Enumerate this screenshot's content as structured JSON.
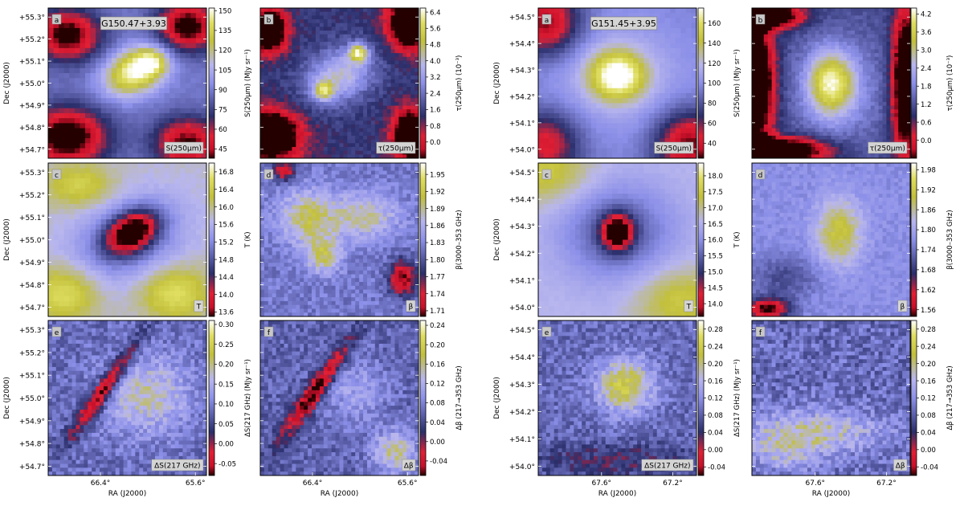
{
  "chart_data": [
    {
      "type": "heatmap",
      "source": "G150.47+3.93",
      "xlabel": "RA (J2000)",
      "ylabel": "Dec (J2000)",
      "x_ticks": [
        "66.4°",
        "65.6°"
      ],
      "y_ticks": [
        "+55.3°",
        "+55.2°",
        "+55.1°",
        "+55.0°",
        "+54.9°",
        "+54.8°",
        "+54.7°"
      ],
      "panels": [
        {
          "letter": "a",
          "corner_label": "S(250μm)",
          "cbar_label": "S(250μm) (MJy sr⁻¹)",
          "cbar_ticks": [
            "150",
            "135",
            "120",
            "105",
            "90",
            "75",
            "60",
            "45"
          ],
          "range": [
            38,
            152
          ],
          "bg": 0.45,
          "blobs": [
            {
              "cx": 0.55,
              "cy": 0.42,
              "sx": 0.14,
              "sy": 0.1,
              "a": 0.55,
              "rot": -0.5
            },
            {
              "cx": 0.66,
              "cy": 0.36,
              "sx": 0.07,
              "sy": 0.06,
              "a": 0.25,
              "rot": 0
            },
            {
              "cx": 0.12,
              "cy": 0.18,
              "sx": 0.15,
              "sy": 0.12,
              "a": -0.5,
              "rot": 0
            },
            {
              "cx": 0.88,
              "cy": 0.12,
              "sx": 0.14,
              "sy": 0.12,
              "a": -0.5,
              "rot": 0
            },
            {
              "cx": 0.12,
              "cy": 0.86,
              "sx": 0.18,
              "sy": 0.14,
              "a": -0.55,
              "rot": 0
            },
            {
              "cx": 0.88,
              "cy": 0.9,
              "sx": 0.15,
              "sy": 0.12,
              "a": -0.45,
              "rot": 0
            }
          ],
          "noise": 0.03,
          "smooth": true
        },
        {
          "letter": "b",
          "corner_label": "τ(250μm)",
          "cbar_label": "τ(250μm) (10⁻³)",
          "cbar_ticks": [
            "6.4",
            "5.6",
            "4.8",
            "4.0",
            "3.2",
            "2.4",
            "1.6",
            "0.8",
            "0.0"
          ],
          "range": [
            -0.8,
            6.6
          ],
          "bg": 0.3,
          "blobs": [
            {
              "cx": 0.5,
              "cy": 0.45,
              "sx": 0.16,
              "sy": 0.12,
              "a": 0.35,
              "rot": -0.5
            },
            {
              "cx": 0.62,
              "cy": 0.3,
              "sx": 0.04,
              "sy": 0.04,
              "a": 0.55,
              "rot": 0
            },
            {
              "cx": 0.4,
              "cy": 0.55,
              "sx": 0.04,
              "sy": 0.04,
              "a": 0.45,
              "rot": 0
            },
            {
              "cx": 0.05,
              "cy": 0.15,
              "sx": 0.08,
              "sy": 0.1,
              "a": -0.6,
              "rot": 0
            },
            {
              "cx": 0.95,
              "cy": 0.1,
              "sx": 0.1,
              "sy": 0.12,
              "a": -0.6,
              "rot": 0
            },
            {
              "cx": 0.05,
              "cy": 0.85,
              "sx": 0.14,
              "sy": 0.12,
              "a": -0.6,
              "rot": 0
            },
            {
              "cx": 0.95,
              "cy": 0.85,
              "sx": 0.08,
              "sy": 0.12,
              "a": -0.6,
              "rot": 0
            }
          ],
          "noise": 0.08,
          "smooth": false
        },
        {
          "letter": "c",
          "corner_label": "T",
          "cbar_label": "T (K)",
          "cbar_ticks": [
            "16.8",
            "16.4",
            "16.0",
            "15.6",
            "15.2",
            "14.8",
            "14.4",
            "14.0",
            "13.6"
          ],
          "range": [
            13.5,
            17.0
          ],
          "bg": 0.65,
          "blobs": [
            {
              "cx": 0.53,
              "cy": 0.45,
              "sx": 0.12,
              "sy": 0.08,
              "a": -0.6,
              "rot": -0.55
            },
            {
              "cx": 0.5,
              "cy": 0.5,
              "sx": 0.25,
              "sy": 0.18,
              "a": -0.25,
              "rot": -0.4
            },
            {
              "cx": 0.2,
              "cy": 0.15,
              "sx": 0.15,
              "sy": 0.1,
              "a": 0.2,
              "rot": 0
            },
            {
              "cx": 0.1,
              "cy": 0.85,
              "sx": 0.15,
              "sy": 0.12,
              "a": 0.25,
              "rot": 0
            },
            {
              "cx": 0.8,
              "cy": 0.85,
              "sx": 0.15,
              "sy": 0.12,
              "a": 0.25,
              "rot": 0
            }
          ],
          "noise": 0.03,
          "smooth": true
        },
        {
          "letter": "d",
          "corner_label": "β",
          "cbar_label": "β(3000–353 GHz)",
          "cbar_ticks": [
            "1.95",
            "1.92",
            "1.89",
            "1.86",
            "1.83",
            "1.80",
            "1.77",
            "1.74",
            "1.71"
          ],
          "range": [
            1.7,
            1.97
          ],
          "bg": 0.45,
          "blobs": [
            {
              "cx": 0.3,
              "cy": 0.35,
              "sx": 0.12,
              "sy": 0.12,
              "a": 0.3,
              "rot": 0
            },
            {
              "cx": 0.65,
              "cy": 0.35,
              "sx": 0.15,
              "sy": 0.1,
              "a": 0.25,
              "rot": 0
            },
            {
              "cx": 0.4,
              "cy": 0.6,
              "sx": 0.08,
              "sy": 0.08,
              "a": 0.3,
              "rot": 0
            },
            {
              "cx": 0.9,
              "cy": 0.75,
              "sx": 0.06,
              "sy": 0.08,
              "a": -0.45,
              "rot": 0
            },
            {
              "cx": 0.15,
              "cy": 0.05,
              "sx": 0.05,
              "sy": 0.05,
              "a": -0.35,
              "rot": 0
            }
          ],
          "noise": 0.12,
          "smooth": false
        },
        {
          "letter": "e",
          "corner_label": "ΔS(217 GHz)",
          "cbar_label": "ΔS(217 GHz) (MJy sr⁻¹)",
          "cbar_ticks": [
            "0.30",
            "0.25",
            "0.20",
            "0.15",
            "0.10",
            "0.05",
            "0.00",
            "-0.05"
          ],
          "range": [
            -0.08,
            0.31
          ],
          "bg": 0.42,
          "blobs": [
            {
              "cx": 0.62,
              "cy": 0.48,
              "sx": 0.2,
              "sy": 0.18,
              "a": 0.25,
              "rot": 0
            },
            {
              "cx": 0.35,
              "cy": 0.45,
              "sx": 0.04,
              "sy": 0.25,
              "a": -0.45,
              "rot": 0.6
            }
          ],
          "noise": 0.15,
          "smooth": false
        },
        {
          "letter": "f",
          "corner_label": "Δβ",
          "cbar_label": "Δβ (217→353 GHz)",
          "cbar_ticks": [
            "0.24",
            "0.20",
            "0.16",
            "0.12",
            "0.08",
            "0.04",
            "0.00",
            "-0.04"
          ],
          "range": [
            -0.07,
            0.25
          ],
          "bg": 0.4,
          "blobs": [
            {
              "cx": 0.6,
              "cy": 0.45,
              "sx": 0.15,
              "sy": 0.15,
              "a": 0.15,
              "rot": 0
            },
            {
              "cx": 0.85,
              "cy": 0.85,
              "sx": 0.1,
              "sy": 0.1,
              "a": 0.3,
              "rot": 0
            },
            {
              "cx": 0.35,
              "cy": 0.45,
              "sx": 0.04,
              "sy": 0.25,
              "a": -0.45,
              "rot": 0.6
            }
          ],
          "noise": 0.15,
          "smooth": false
        }
      ]
    },
    {
      "type": "heatmap",
      "source": "G151.45+3.95",
      "xlabel": "RA (J2000)",
      "ylabel": "Dec (J2000)",
      "x_ticks": [
        "67.6°",
        "67.2°"
      ],
      "y_ticks": [
        "+54.5°",
        "+54.4°",
        "+54.3°",
        "+54.2°",
        "+54.1°",
        "+54.0°"
      ],
      "panels": [
        {
          "letter": "a",
          "corner_label": "S(250μm)",
          "cbar_label": "S(250μm) (MJy sr⁻¹)",
          "cbar_ticks": [
            "160",
            "140",
            "120",
            "100",
            "80",
            "60",
            "40"
          ],
          "range": [
            25,
            175
          ],
          "bg": 0.45,
          "blobs": [
            {
              "cx": 0.5,
              "cy": 0.45,
              "sx": 0.12,
              "sy": 0.11,
              "a": 0.5,
              "rot": 0
            },
            {
              "cx": 0.5,
              "cy": 0.45,
              "sx": 0.35,
              "sy": 0.3,
              "a": 0.15,
              "rot": 0
            },
            {
              "cx": 0.05,
              "cy": 0.1,
              "sx": 0.15,
              "sy": 0.15,
              "a": -0.45,
              "rot": 0
            },
            {
              "cx": 0.95,
              "cy": 0.9,
              "sx": 0.15,
              "sy": 0.15,
              "a": -0.45,
              "rot": 0
            },
            {
              "cx": 0.05,
              "cy": 0.9,
              "sx": 0.15,
              "sy": 0.15,
              "a": -0.35,
              "rot": 0
            }
          ],
          "noise": 0.02,
          "smooth": true
        },
        {
          "letter": "b",
          "corner_label": "τ(250μm)",
          "cbar_label": "τ(250μm) (10⁻³)",
          "cbar_ticks": [
            "4.2",
            "3.6",
            "3.0",
            "2.4",
            "1.8",
            "1.2",
            "0.6",
            "0.0"
          ],
          "range": [
            -0.6,
            4.4
          ],
          "bg": 0.35,
          "blobs": [
            {
              "cx": 0.5,
              "cy": 0.5,
              "sx": 0.1,
              "sy": 0.14,
              "a": 0.5,
              "rot": 0
            },
            {
              "cx": 0.55,
              "cy": 0.55,
              "sx": 0.2,
              "sy": 0.25,
              "a": 0.15,
              "rot": 0
            },
            {
              "cx": 0.03,
              "cy": 0.5,
              "sx": 0.08,
              "sy": 0.3,
              "a": -0.6,
              "rot": 0
            },
            {
              "cx": 0.97,
              "cy": 0.5,
              "sx": 0.06,
              "sy": 0.35,
              "a": -0.6,
              "rot": 0
            },
            {
              "cx": 0.1,
              "cy": 0.05,
              "sx": 0.15,
              "sy": 0.06,
              "a": -0.6,
              "rot": 0
            },
            {
              "cx": 0.2,
              "cy": 0.95,
              "sx": 0.2,
              "sy": 0.06,
              "a": -0.6,
              "rot": 0
            }
          ],
          "noise": 0.06,
          "smooth": false
        },
        {
          "letter": "c",
          "corner_label": "T",
          "cbar_label": "T (K)",
          "cbar_ticks": [
            "18.0",
            "17.5",
            "17.0",
            "16.5",
            "16.0",
            "15.5",
            "15.0",
            "14.5",
            "14.0"
          ],
          "range": [
            13.6,
            18.4
          ],
          "bg": 0.62,
          "blobs": [
            {
              "cx": 0.5,
              "cy": 0.45,
              "sx": 0.07,
              "sy": 0.08,
              "a": -0.55,
              "rot": 0
            },
            {
              "cx": 0.5,
              "cy": 0.45,
              "sx": 0.25,
              "sy": 0.22,
              "a": -0.25,
              "rot": 0
            },
            {
              "cx": 0.05,
              "cy": 0.05,
              "sx": 0.2,
              "sy": 0.15,
              "a": 0.2,
              "rot": 0
            },
            {
              "cx": 0.9,
              "cy": 0.9,
              "sx": 0.2,
              "sy": 0.15,
              "a": 0.2,
              "rot": 0
            }
          ],
          "noise": 0.02,
          "smooth": true
        },
        {
          "letter": "d",
          "corner_label": "β",
          "cbar_label": "β(3000–353 GHz)",
          "cbar_ticks": [
            "1.98",
            "1.92",
            "1.86",
            "1.80",
            "1.74",
            "1.68",
            "1.62",
            "1.56"
          ],
          "range": [
            1.54,
            2.0
          ],
          "bg": 0.5,
          "blobs": [
            {
              "cx": 0.55,
              "cy": 0.45,
              "sx": 0.1,
              "sy": 0.15,
              "a": 0.3,
              "rot": 0
            },
            {
              "cx": 0.1,
              "cy": 0.95,
              "sx": 0.1,
              "sy": 0.05,
              "a": -0.5,
              "rot": 0
            },
            {
              "cx": 0.2,
              "cy": 0.75,
              "sx": 0.15,
              "sy": 0.1,
              "a": -0.15,
              "rot": 0
            }
          ],
          "noise": 0.07,
          "smooth": false
        },
        {
          "letter": "e",
          "corner_label": "ΔS(217 GHz)",
          "cbar_label": "ΔS(217 GHz) (MJy sr⁻¹)",
          "cbar_ticks": [
            "0.28",
            "0.24",
            "0.20",
            "0.16",
            "0.12",
            "0.08",
            "0.04",
            "0.00",
            "-0.04"
          ],
          "range": [
            -0.06,
            0.3
          ],
          "bg": 0.42,
          "blobs": [
            {
              "cx": 0.55,
              "cy": 0.42,
              "sx": 0.12,
              "sy": 0.12,
              "a": 0.4,
              "rot": 0
            },
            {
              "cx": 0.5,
              "cy": 0.9,
              "sx": 0.4,
              "sy": 0.08,
              "a": -0.15,
              "rot": 0
            }
          ],
          "noise": 0.15,
          "smooth": false
        },
        {
          "letter": "f",
          "corner_label": "Δβ",
          "cbar_label": "Δβ (217→353 GHz)",
          "cbar_ticks": [
            "0.28",
            "0.24",
            "0.20",
            "0.16",
            "0.12",
            "0.08",
            "0.04",
            "0.00",
            "-0.04"
          ],
          "range": [
            -0.06,
            0.3
          ],
          "bg": 0.42,
          "blobs": [
            {
              "cx": 0.4,
              "cy": 0.72,
              "sx": 0.3,
              "sy": 0.1,
              "a": 0.25,
              "rot": 0
            },
            {
              "cx": 0.2,
              "cy": 0.85,
              "sx": 0.15,
              "sy": 0.1,
              "a": 0.15,
              "rot": 0
            }
          ],
          "noise": 0.18,
          "smooth": false
        }
      ]
    }
  ]
}
